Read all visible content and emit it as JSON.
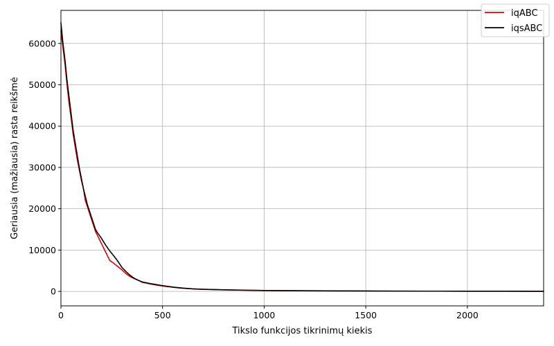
{
  "chart_data": {
    "type": "line",
    "title": "",
    "xlabel": "Tikslo funkcijos tikrinimų kiekis",
    "ylabel": "Geriausia (mažiausia) rasta reikšmė",
    "xlim": [
      0,
      2375
    ],
    "ylim": [
      -3500,
      68000
    ],
    "xticks": [
      0,
      500,
      1000,
      1500,
      2000
    ],
    "yticks": [
      0,
      10000,
      20000,
      30000,
      40000,
      50000,
      60000
    ],
    "grid": true,
    "legend_position": "top-right",
    "series": [
      {
        "name": "iqABC",
        "color": "#e00000",
        "x": [
          0,
          10,
          20,
          30,
          40,
          50,
          60,
          70,
          80,
          90,
          100,
          110,
          120,
          130,
          140,
          150,
          160,
          170,
          180,
          200,
          220,
          240,
          260,
          280,
          300,
          320,
          340,
          360,
          380,
          400,
          450,
          500,
          550,
          600,
          650,
          700,
          800,
          900,
          1000,
          1200,
          1400,
          1600,
          1800,
          2000,
          2200,
          2375
        ],
        "y": [
          63000,
          59000,
          55000,
          50000,
          45500,
          42000,
          38000,
          35000,
          32000,
          29500,
          27000,
          25000,
          22000,
          20500,
          19000,
          17500,
          16000,
          14500,
          13500,
          11500,
          9500,
          7500,
          6800,
          6000,
          5200,
          4300,
          3600,
          3100,
          2700,
          2200,
          1700,
          1300,
          1000,
          750,
          600,
          500,
          380,
          300,
          220,
          150,
          110,
          80,
          60,
          50,
          40,
          30
        ]
      },
      {
        "name": "iqsABC",
        "color": "#000000",
        "x": [
          0,
          10,
          20,
          30,
          40,
          50,
          60,
          70,
          80,
          90,
          100,
          110,
          120,
          130,
          140,
          150,
          160,
          170,
          180,
          200,
          220,
          240,
          260,
          280,
          300,
          320,
          340,
          360,
          380,
          400,
          450,
          500,
          550,
          600,
          650,
          700,
          800,
          900,
          1000,
          1200,
          1400,
          1600,
          1800,
          2000,
          2200,
          2375
        ],
        "y": [
          65000,
          60000,
          56000,
          51000,
          47000,
          43000,
          39000,
          36000,
          33000,
          30000,
          27500,
          25000,
          23000,
          21000,
          19500,
          18000,
          16500,
          15000,
          14200,
          12800,
          11200,
          9800,
          8600,
          7300,
          5800,
          4800,
          3900,
          3200,
          2700,
          2300,
          1800,
          1400,
          1050,
          800,
          620,
          500,
          380,
          290,
          220,
          150,
          110,
          80,
          60,
          50,
          40,
          30
        ]
      }
    ]
  }
}
